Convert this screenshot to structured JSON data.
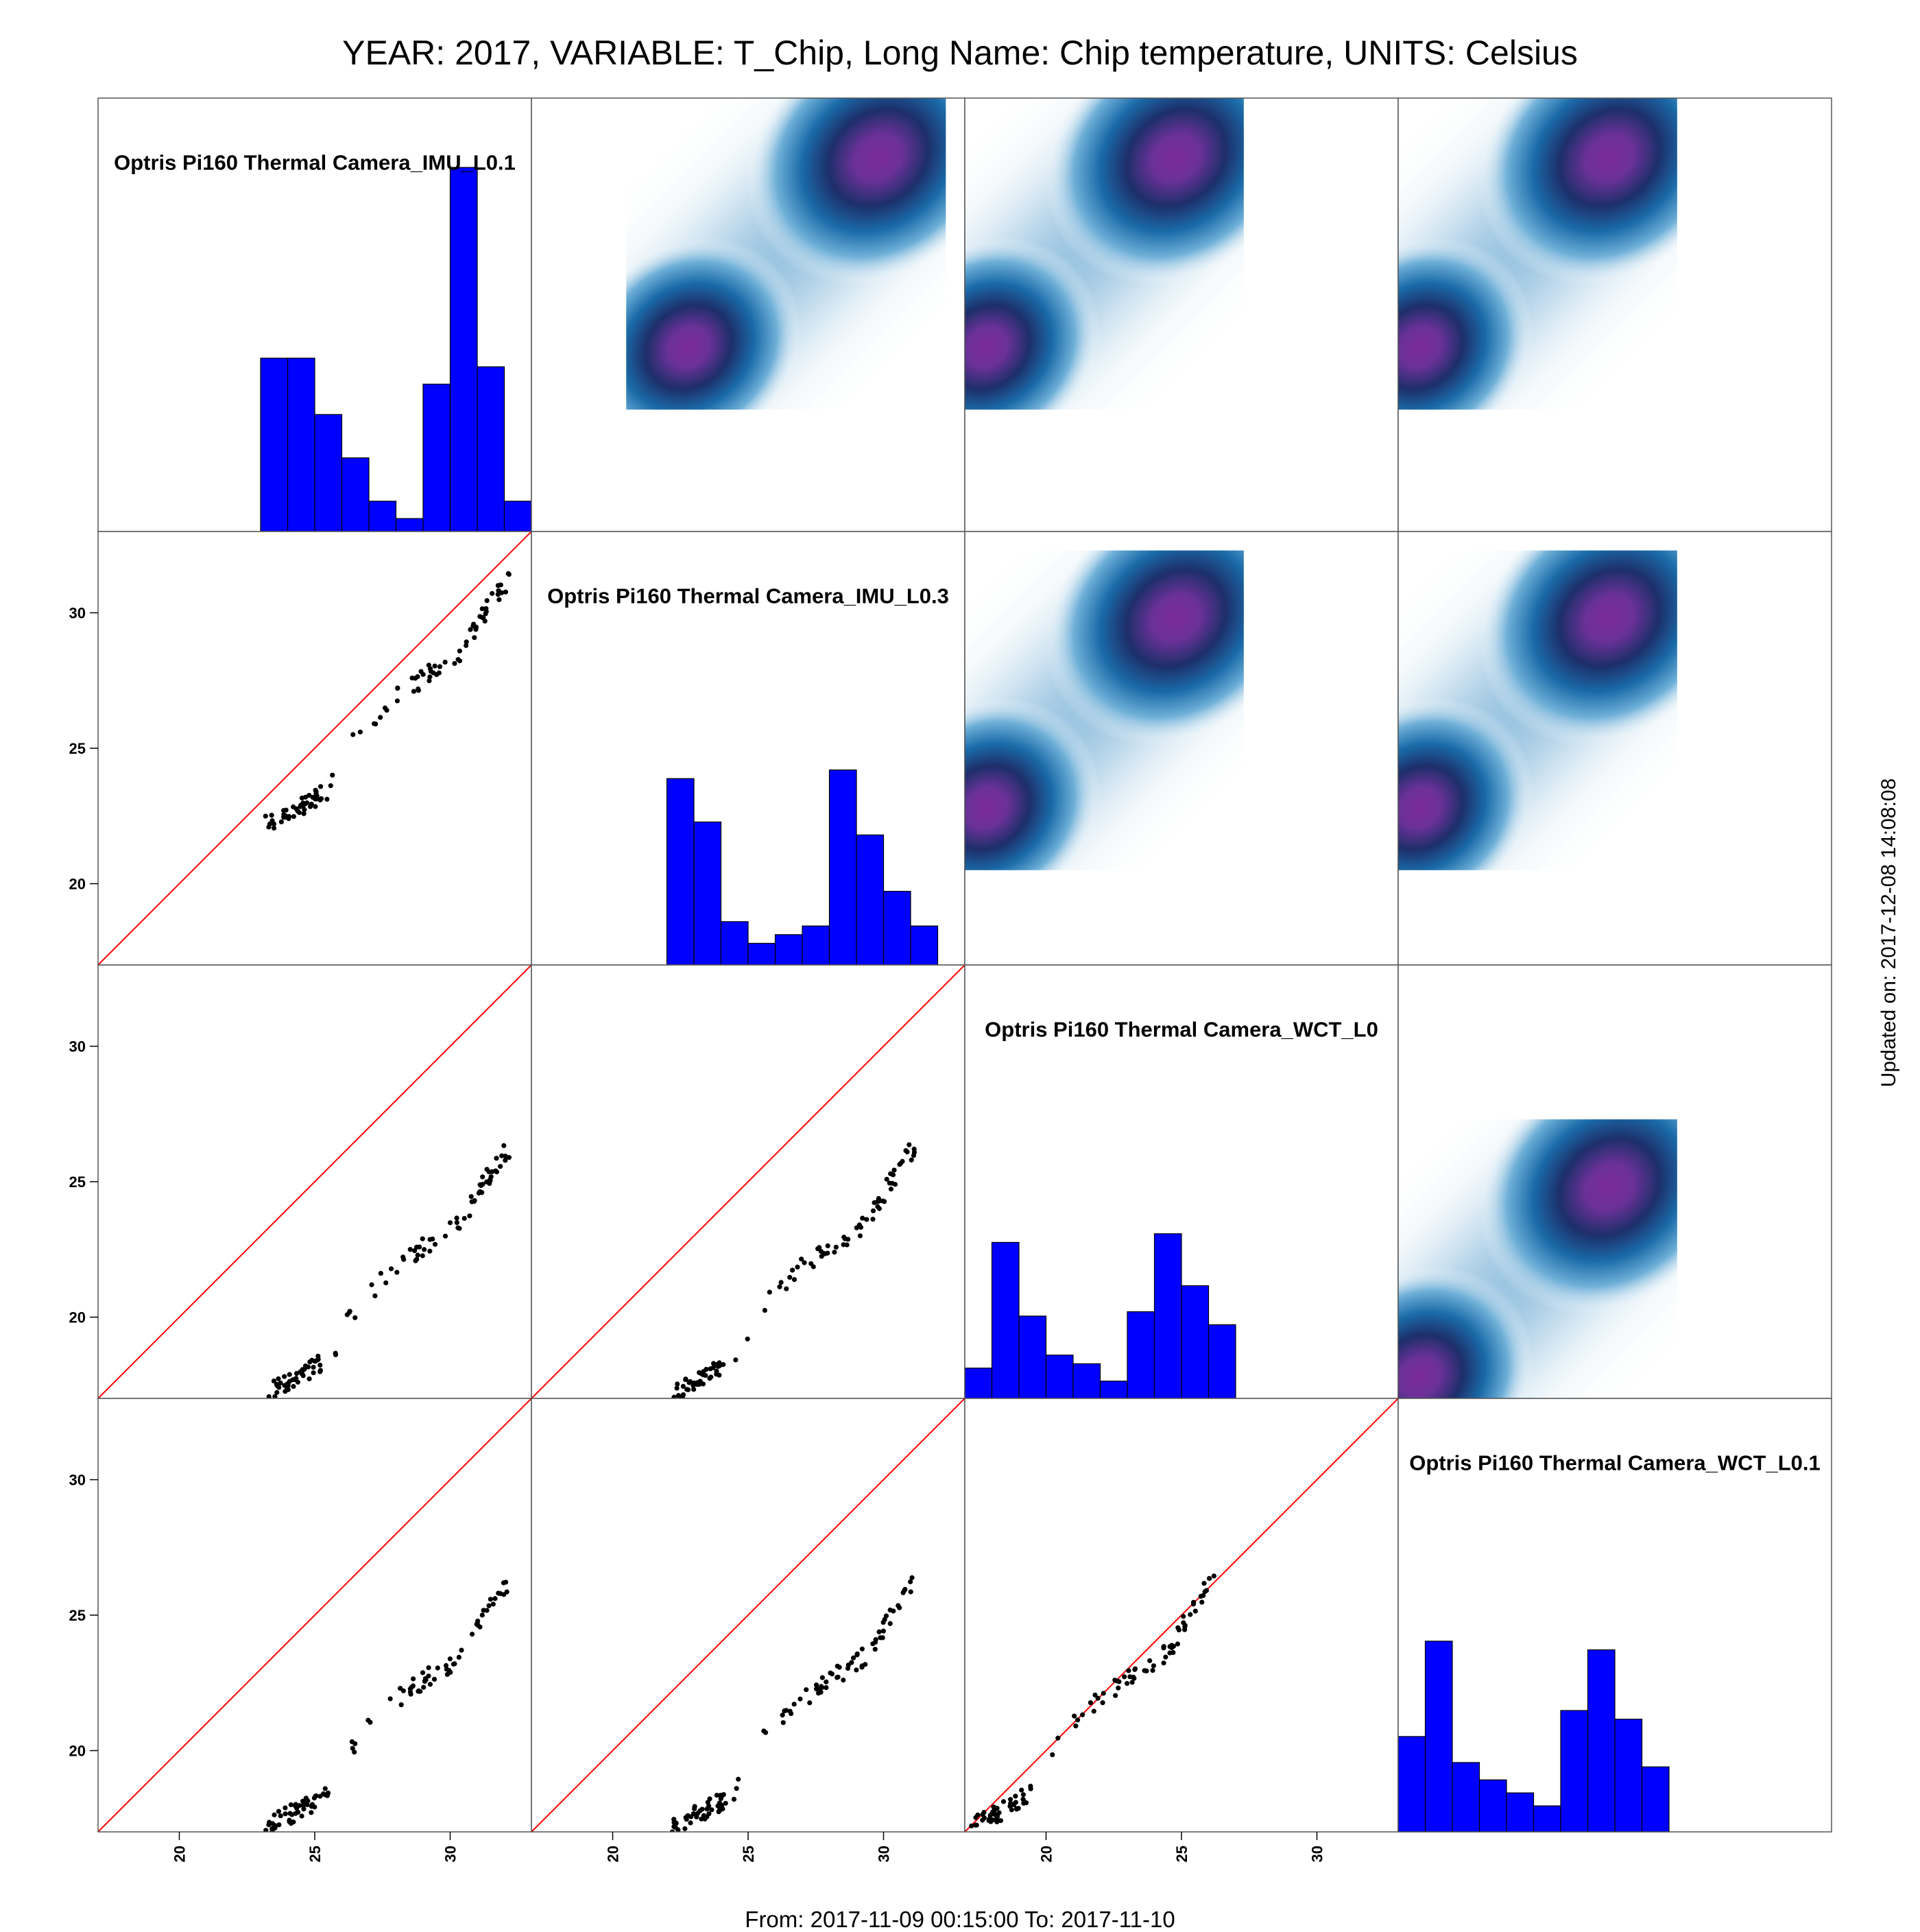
{
  "title": "YEAR: 2017, VARIABLE: T_Chip, Long Name: Chip temperature, UNITS: Celsius",
  "footer": "From: 2017-11-09 00:15:00 To: 2017-11-10",
  "updated": "Updated on: 2017-12-08 14:08:08",
  "chart_data": {
    "type": "scatter-matrix",
    "variables": [
      "Optris Pi160 Thermal Camera_IMU_L0.1",
      "Optris Pi160 Thermal Camera_IMU_L0.3",
      "Optris Pi160 Thermal Camera_WCT_L0",
      "Optris Pi160 Thermal Camera_WCT_L0.1"
    ],
    "axis_range": [
      17,
      33
    ],
    "ticks": [
      20,
      25,
      30
    ],
    "lower_panels": "scatter with red y=x line",
    "upper_panels": "2D density (blue to purple)",
    "colors": {
      "hist_fill": "#0000ff",
      "identity_line": "#ff0000",
      "density_low": "#ffffff",
      "density_mid": "#1a6aa8",
      "density_peak": "#7b2a9a"
    },
    "histograms": [
      {
        "bins": [
          [
            23,
            24,
            40
          ],
          [
            24,
            25,
            40
          ],
          [
            25,
            26,
            27
          ],
          [
            26,
            27,
            17
          ],
          [
            27,
            28,
            7
          ],
          [
            28,
            29,
            3
          ],
          [
            29,
            30,
            34
          ],
          [
            30,
            31,
            84
          ],
          [
            31,
            32,
            38
          ],
          [
            32,
            33,
            7
          ]
        ]
      },
      {
        "bins": [
          [
            22,
            23,
            43
          ],
          [
            23,
            24,
            33
          ],
          [
            24,
            25,
            10
          ],
          [
            25,
            26,
            5
          ],
          [
            26,
            27,
            7
          ],
          [
            27,
            28,
            9
          ],
          [
            28,
            29,
            45
          ],
          [
            29,
            30,
            30
          ],
          [
            30,
            31,
            17
          ],
          [
            31,
            32,
            9
          ]
        ]
      },
      {
        "bins": [
          [
            17,
            18,
            7
          ],
          [
            18,
            19,
            36
          ],
          [
            19,
            20,
            19
          ],
          [
            20,
            21,
            10
          ],
          [
            21,
            22,
            8
          ],
          [
            22,
            23,
            4
          ],
          [
            23,
            24,
            20
          ],
          [
            24,
            25,
            38
          ],
          [
            25,
            26,
            26
          ],
          [
            26,
            27,
            17
          ]
        ]
      },
      {
        "bins": [
          [
            17,
            18,
            22
          ],
          [
            18,
            19,
            44
          ],
          [
            19,
            20,
            16
          ],
          [
            20,
            21,
            12
          ],
          [
            21,
            22,
            9
          ],
          [
            22,
            23,
            6
          ],
          [
            23,
            24,
            28
          ],
          [
            24,
            25,
            42
          ],
          [
            25,
            26,
            26
          ],
          [
            26,
            27,
            15
          ]
        ]
      }
    ],
    "variable_ranges": [
      [
        23,
        33
      ],
      [
        22,
        32
      ],
      [
        17,
        27
      ],
      [
        17,
        27
      ]
    ],
    "scatter_curve": [
      {
        "x": 23.2,
        "y": 22.5
      },
      {
        "x": 24.0,
        "y": 22.9
      },
      {
        "x": 24.8,
        "y": 23.3
      },
      {
        "x": 25.5,
        "y": 23.8
      },
      {
        "x": 26.0,
        "y": 24.5
      },
      {
        "x": 26.3,
        "y": 25.4
      },
      {
        "x": 27.0,
        "y": 26.2
      },
      {
        "x": 28.0,
        "y": 27.2
      },
      {
        "x": 29.3,
        "y": 28.1
      },
      {
        "x": 30.0,
        "y": 28.5
      },
      {
        "x": 30.6,
        "y": 29.1
      },
      {
        "x": 31.2,
        "y": 30.2
      },
      {
        "x": 32.0,
        "y": 31.4
      }
    ]
  }
}
